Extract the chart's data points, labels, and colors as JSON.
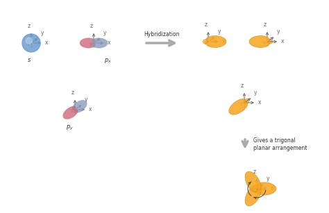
{
  "bg_color": "#ffffff",
  "s_orbital_color": "#6699cc",
  "px_red_color": "#cc6677",
  "px_blue_color": "#8899bb",
  "py_red_color": "#cc6677",
  "py_blue_color": "#8899bb",
  "hybrid_color": "#f5a623",
  "hybrid_edge": "#c8841a",
  "axis_color": "#666666",
  "arrow_gray": "#aaaaaa",
  "text_color": "#333333",
  "hybridization_text": "Hybridization",
  "gives_text": "Gives a trigonal\nplanar arrangement",
  "label_s": "s",
  "label_px": "$p_x$",
  "label_py": "$p_y$"
}
